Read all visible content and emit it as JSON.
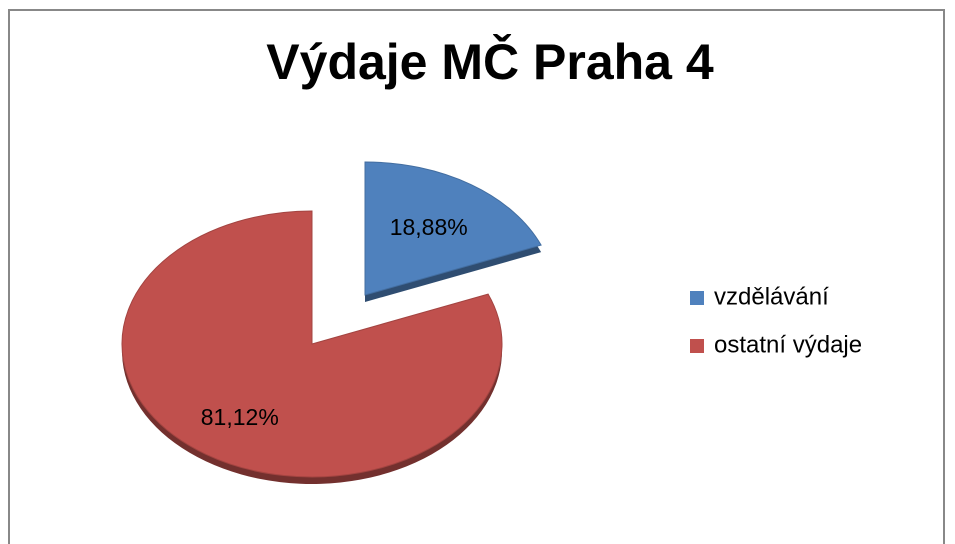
{
  "chart_data": {
    "type": "pie",
    "title": "Výdaje MČ Praha 4",
    "categories": [
      "vzdělávání",
      "ostatní výdaje"
    ],
    "values": [
      18.88,
      81.12
    ],
    "value_labels": [
      "18,88%",
      "81,12%"
    ],
    "colors": [
      "#4f81bd",
      "#c0504d"
    ],
    "legend": "right"
  }
}
